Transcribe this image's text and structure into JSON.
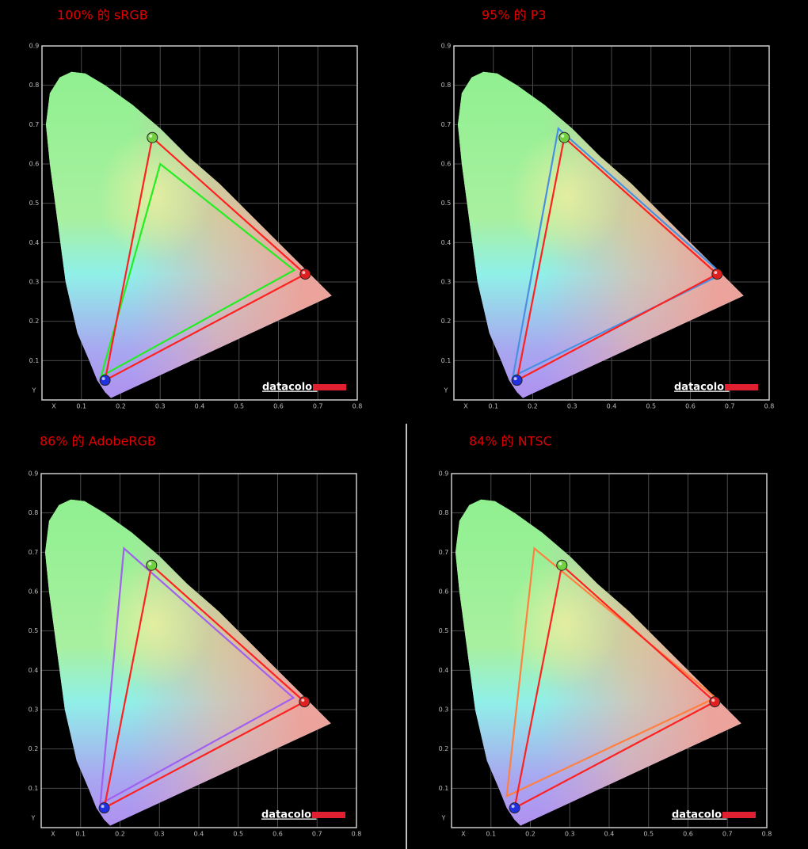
{
  "chart_data": [
    {
      "type": "gamut",
      "title": "100% 的 sRGB",
      "logo": "datacolor",
      "xlim": [
        0,
        0.8
      ],
      "ylim": [
        0,
        0.9
      ],
      "xticks": [
        {
          "value": 0,
          "label": "X"
        },
        0.1,
        0.2,
        0.3,
        0.4,
        0.5,
        0.6,
        0.7,
        0.8
      ],
      "yticks": [
        {
          "value": 0,
          "label": "Y"
        },
        0.1,
        0.2,
        0.3,
        0.4,
        0.5,
        0.6,
        0.7,
        0.8,
        0.9
      ],
      "grid": true,
      "series": [
        {
          "color": "#22ee22",
          "x": [
            0.64,
            0.3,
            0.15
          ],
          "values": [
            0.33,
            0.6,
            0.06
          ]
        },
        {
          "color": "#ff2020",
          "x": [
            0.668,
            0.28,
            0.16
          ],
          "values": [
            0.32,
            0.667,
            0.05
          ],
          "marker_colors": [
            "#e02020",
            "#70d040",
            "#2030e0"
          ]
        }
      ]
    },
    {
      "type": "gamut",
      "title": "95% 的 P3",
      "logo": "datacolor",
      "xlim": [
        0,
        0.8
      ],
      "ylim": [
        0,
        0.9
      ],
      "xticks": [
        {
          "value": 0,
          "label": "X"
        },
        0.1,
        0.2,
        0.3,
        0.4,
        0.5,
        0.6,
        0.7,
        0.8
      ],
      "yticks": [
        {
          "value": 0,
          "label": "Y"
        },
        0.1,
        0.2,
        0.3,
        0.4,
        0.5,
        0.6,
        0.7,
        0.8,
        0.9
      ],
      "grid": true,
      "series": [
        {
          "color": "#4a90e2",
          "x": [
            0.68,
            0.265,
            0.15
          ],
          "values": [
            0.32,
            0.69,
            0.06
          ]
        },
        {
          "color": "#ff2020",
          "x": [
            0.668,
            0.28,
            0.16
          ],
          "values": [
            0.32,
            0.667,
            0.05
          ],
          "marker_colors": [
            "#e02020",
            "#70d040",
            "#2030e0"
          ]
        }
      ]
    },
    {
      "type": "gamut",
      "title": "86% 的 AdobeRGB",
      "logo": "datacolor",
      "xlim": [
        0,
        0.8
      ],
      "ylim": [
        0,
        0.9
      ],
      "xticks": [
        {
          "value": 0,
          "label": "X"
        },
        0.1,
        0.2,
        0.3,
        0.4,
        0.5,
        0.6,
        0.7,
        0.8
      ],
      "yticks": [
        {
          "value": 0,
          "label": "Y"
        },
        0.1,
        0.2,
        0.3,
        0.4,
        0.5,
        0.6,
        0.7,
        0.8,
        0.9
      ],
      "grid": true,
      "series": [
        {
          "color": "#a060f0",
          "x": [
            0.64,
            0.21,
            0.15
          ],
          "values": [
            0.33,
            0.71,
            0.06
          ]
        },
        {
          "color": "#ff2020",
          "x": [
            0.668,
            0.28,
            0.16
          ],
          "values": [
            0.32,
            0.667,
            0.05
          ],
          "marker_colors": [
            "#e02020",
            "#70d040",
            "#2030e0"
          ]
        }
      ]
    },
    {
      "type": "gamut",
      "title": "84% 的 NTSC",
      "logo": "datacolor",
      "xlim": [
        0,
        0.8
      ],
      "ylim": [
        0,
        0.9
      ],
      "xticks": [
        {
          "value": 0,
          "label": "X"
        },
        0.1,
        0.2,
        0.3,
        0.4,
        0.5,
        0.6,
        0.7,
        0.8
      ],
      "yticks": [
        {
          "value": 0,
          "label": "Y"
        },
        0.1,
        0.2,
        0.3,
        0.4,
        0.5,
        0.6,
        0.7,
        0.8,
        0.9
      ],
      "grid": true,
      "series": [
        {
          "color": "#ff8040",
          "x": [
            0.67,
            0.21,
            0.14
          ],
          "values": [
            0.33,
            0.71,
            0.08
          ]
        },
        {
          "color": "#ff2020",
          "x": [
            0.668,
            0.28,
            0.16
          ],
          "values": [
            0.32,
            0.667,
            0.05
          ],
          "marker_colors": [
            "#e02020",
            "#70d040",
            "#2030e0"
          ]
        }
      ]
    }
  ]
}
